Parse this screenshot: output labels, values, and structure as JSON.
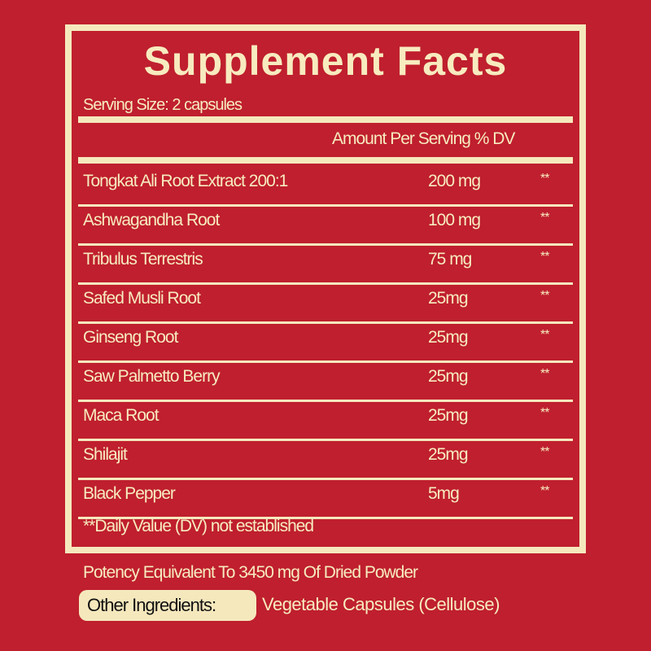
{
  "title": "Supplement Facts",
  "serving_size": "Serving Size: 2 capsules",
  "header": "Amount Per Serving % DV",
  "rows": [
    {
      "name": "Tongkat Ali Root Extract 200:1",
      "amount": "200 mg",
      "dv": "**"
    },
    {
      "name": "Ashwagandha Root",
      "amount": "100 mg",
      "dv": "**"
    },
    {
      "name": "Tribulus Terrestris",
      "amount": "75 mg",
      "dv": "**"
    },
    {
      "name": "Safed Musli Root",
      "amount": "25mg",
      "dv": "**"
    },
    {
      "name": "Ginseng Root",
      "amount": "25mg",
      "dv": "**"
    },
    {
      "name": "Saw Palmetto Berry",
      "amount": "25mg",
      "dv": "**"
    },
    {
      "name": "Maca Root",
      "amount": "25mg",
      "dv": "**"
    },
    {
      "name": "Shilajit",
      "amount": "25mg",
      "dv": "**"
    },
    {
      "name": "Black Pepper",
      "amount": "5mg",
      "dv": "**"
    }
  ],
  "footnote": "**Daily Value (DV) not established",
  "potency": "Potency Equivalent To 3450 mg Of Dried Powder",
  "other_label": "Other Ingredients:",
  "other_value": "Vegetable Capsules (Cellulose)",
  "colors": {
    "background": "#bf1f2e",
    "cream": "#f5e8bd"
  }
}
